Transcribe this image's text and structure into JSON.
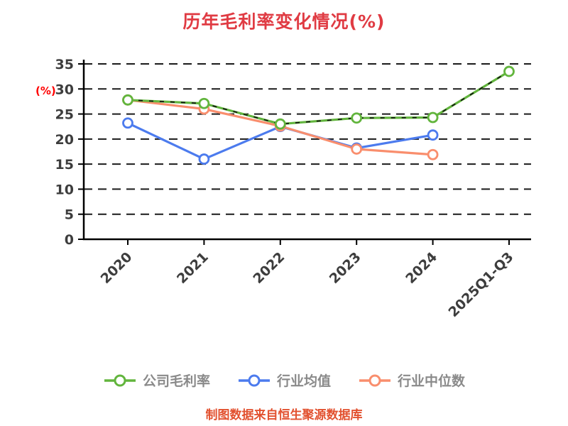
{
  "chart_data": {
    "type": "line",
    "title": "历年毛利率变化情况(%)",
    "categories": [
      "2020",
      "2021",
      "2022",
      "2023",
      "2024",
      "2025Q1-Q3"
    ],
    "series": [
      {
        "name": "公司毛利率",
        "color": "#62b53d",
        "values": [
          27.8,
          27.1,
          23.0,
          24.2,
          24.3,
          33.5
        ],
        "dash_overlay": true
      },
      {
        "name": "行业均值",
        "color": "#4c7bee",
        "values": [
          23.2,
          16.0,
          22.5,
          18.2,
          20.8,
          null
        ]
      },
      {
        "name": "行业中位数",
        "color": "#f98e6d",
        "values": [
          27.8,
          26.0,
          22.6,
          18.0,
          16.9,
          null
        ]
      }
    ],
    "xlabel": "",
    "ylabel": "(%)",
    "ylim": [
      0,
      35
    ],
    "yticks": [
      0,
      5,
      10,
      15,
      20,
      25,
      30,
      35
    ],
    "grid": "horizontal-dashed",
    "legend_position": "bottom",
    "source_note": "制图数据来自恒生聚源数据库"
  },
  "colors": {
    "title": "#e03b43",
    "ylabel": "#ff0000",
    "footer": "#e2512f",
    "ticks": "#3d3d3d",
    "legend_text": "#8a8a8a",
    "grid": "#1a1a1a",
    "axis": "#000000",
    "background": "#ffffff"
  }
}
